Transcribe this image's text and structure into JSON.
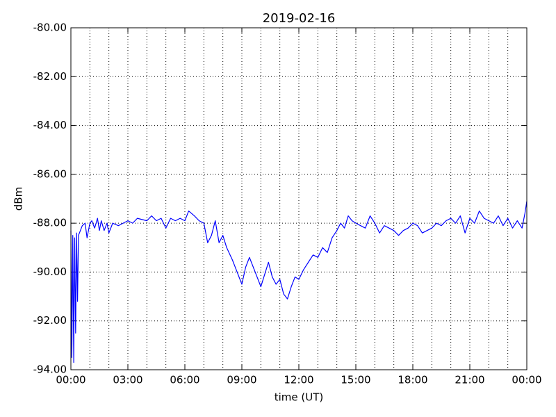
{
  "chart_data": {
    "type": "line",
    "title": "2019-02-16",
    "x_label": "time (UT)",
    "y_label": "dBm",
    "color": "#0000ff",
    "grid": true,
    "xlim": [
      0,
      24
    ],
    "ylim": [
      -94,
      -80
    ],
    "xticks": [
      {
        "value": 0,
        "label": "00:00"
      },
      {
        "value": 3,
        "label": "03:00"
      },
      {
        "value": 6,
        "label": "06:00"
      },
      {
        "value": 9,
        "label": "09:00"
      },
      {
        "value": 12,
        "label": "12:00"
      },
      {
        "value": 15,
        "label": "15:00"
      },
      {
        "value": 18,
        "label": "18:00"
      },
      {
        "value": 21,
        "label": "21:00"
      },
      {
        "value": 24,
        "label": "00:00"
      }
    ],
    "x_minor_ticks": [
      1,
      2,
      4,
      5,
      7,
      8,
      10,
      11,
      13,
      14,
      16,
      17,
      19,
      20,
      22,
      23
    ],
    "yticks": [
      {
        "value": -80,
        "label": "-80.00"
      },
      {
        "value": -82,
        "label": "-82.00"
      },
      {
        "value": -84,
        "label": "-84.00"
      },
      {
        "value": -86,
        "label": "-86.00"
      },
      {
        "value": -88,
        "label": "-88.00"
      },
      {
        "value": -90,
        "label": "-90.00"
      },
      {
        "value": -92,
        "label": "-92.00"
      },
      {
        "value": -94,
        "label": "-94.00"
      }
    ],
    "x": [
      0,
      0.05,
      0.1,
      0.15,
      0.2,
      0.25,
      0.3,
      0.35,
      0.4,
      0.5,
      0.6,
      0.75,
      0.85,
      1.0,
      1.1,
      1.25,
      1.4,
      1.5,
      1.6,
      1.75,
      1.9,
      2.0,
      2.2,
      2.5,
      2.75,
      3.0,
      3.25,
      3.5,
      4.0,
      4.25,
      4.5,
      4.75,
      5.0,
      5.25,
      5.5,
      5.75,
      6.0,
      6.2,
      6.5,
      6.75,
      7.0,
      7.2,
      7.4,
      7.6,
      7.8,
      8.0,
      8.2,
      8.5,
      8.75,
      9.0,
      9.2,
      9.4,
      9.6,
      9.8,
      10.0,
      10.2,
      10.4,
      10.6,
      10.8,
      11.0,
      11.2,
      11.4,
      11.6,
      11.8,
      12.0,
      12.25,
      12.5,
      12.75,
      13.0,
      13.25,
      13.5,
      13.75,
      14.0,
      14.2,
      14.4,
      14.6,
      14.8,
      15.0,
      15.25,
      15.5,
      15.75,
      16.0,
      16.25,
      16.5,
      16.75,
      17.0,
      17.25,
      17.5,
      17.75,
      18.0,
      18.25,
      18.5,
      18.75,
      19.0,
      19.25,
      19.5,
      19.75,
      20.0,
      20.25,
      20.5,
      20.75,
      21.0,
      21.25,
      21.5,
      21.75,
      22.0,
      22.25,
      22.5,
      22.75,
      23.0,
      23.25,
      23.5,
      23.75,
      23.9,
      24.0
    ],
    "values": [
      -88.3,
      -93.5,
      -88.5,
      -93.7,
      -88.6,
      -92.5,
      -88.4,
      -91.2,
      -88.5,
      -88.3,
      -88.1,
      -88.0,
      -88.6,
      -88.0,
      -87.9,
      -88.2,
      -87.8,
      -88.3,
      -87.9,
      -88.3,
      -88.0,
      -88.4,
      -88.0,
      -88.1,
      -88.0,
      -87.9,
      -88.0,
      -87.8,
      -87.9,
      -87.7,
      -87.9,
      -87.8,
      -88.2,
      -87.8,
      -87.9,
      -87.8,
      -87.9,
      -87.5,
      -87.7,
      -87.9,
      -88.0,
      -88.8,
      -88.5,
      -87.9,
      -88.8,
      -88.5,
      -89.0,
      -89.5,
      -90.0,
      -90.5,
      -89.8,
      -89.4,
      -89.8,
      -90.2,
      -90.6,
      -90.1,
      -89.6,
      -90.2,
      -90.5,
      -90.3,
      -90.9,
      -91.1,
      -90.6,
      -90.2,
      -90.3,
      -89.9,
      -89.6,
      -89.3,
      -89.4,
      -89.0,
      -89.2,
      -88.6,
      -88.3,
      -88.0,
      -88.2,
      -87.7,
      -87.9,
      -88.0,
      -88.1,
      -88.2,
      -87.7,
      -88.0,
      -88.4,
      -88.1,
      -88.2,
      -88.3,
      -88.5,
      -88.3,
      -88.2,
      -88.0,
      -88.1,
      -88.4,
      -88.3,
      -88.2,
      -88.0,
      -88.1,
      -87.9,
      -87.8,
      -88.0,
      -87.7,
      -88.4,
      -87.8,
      -88.0,
      -87.5,
      -87.8,
      -87.9,
      -88.0,
      -87.7,
      -88.1,
      -87.8,
      -88.2,
      -87.9,
      -88.2,
      -87.6,
      -87.1
    ]
  }
}
